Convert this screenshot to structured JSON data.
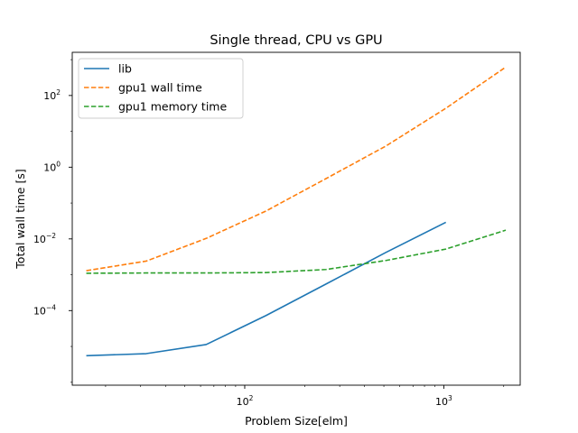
{
  "chart_data": {
    "type": "line",
    "title": "Single thread, CPU vs GPU",
    "xlabel": "Problem Size[elm]",
    "ylabel": "Total wall time [s]",
    "xscale": "log",
    "yscale": "log",
    "xlim": [
      13.6,
      2420
    ],
    "ylim": [
      8.3e-07,
      1600
    ],
    "grid": false,
    "legend": "upper left",
    "xticks": [
      {
        "value": 100,
        "base": "10",
        "exp": "2"
      },
      {
        "value": 1000,
        "base": "10",
        "exp": "3"
      }
    ],
    "yticks": [
      {
        "value": 0.0001,
        "base": "10",
        "exp": "−4"
      },
      {
        "value": 0.01,
        "base": "10",
        "exp": "−2"
      },
      {
        "value": 1,
        "base": "10",
        "exp": "0"
      },
      {
        "value": 100,
        "base": "10",
        "exp": "2"
      }
    ],
    "series": [
      {
        "name": "lib",
        "color": "#1f77b4",
        "dash": "solid",
        "x": [
          16,
          32,
          64,
          128,
          256,
          512,
          1024
        ],
        "y": [
          5.5e-06,
          6.3e-06,
          1.13e-05,
          7.3e-05,
          0.00055,
          0.0042,
          0.029
        ]
      },
      {
        "name": "gpu1 wall time",
        "color": "#ff7f0e",
        "dash": "dashed",
        "x": [
          16,
          32,
          64,
          128,
          256,
          512,
          1024,
          2048
        ],
        "y": [
          0.0013,
          0.0024,
          0.0103,
          0.06,
          0.48,
          3.9,
          44,
          620
        ]
      },
      {
        "name": "gpu1 memory time",
        "color": "#2ca02c",
        "dash": "dashed",
        "x": [
          16,
          32,
          64,
          128,
          256,
          512,
          1024,
          2048
        ],
        "y": [
          0.0011,
          0.00112,
          0.00112,
          0.00115,
          0.0014,
          0.0025,
          0.0052,
          0.0175
        ]
      }
    ]
  }
}
